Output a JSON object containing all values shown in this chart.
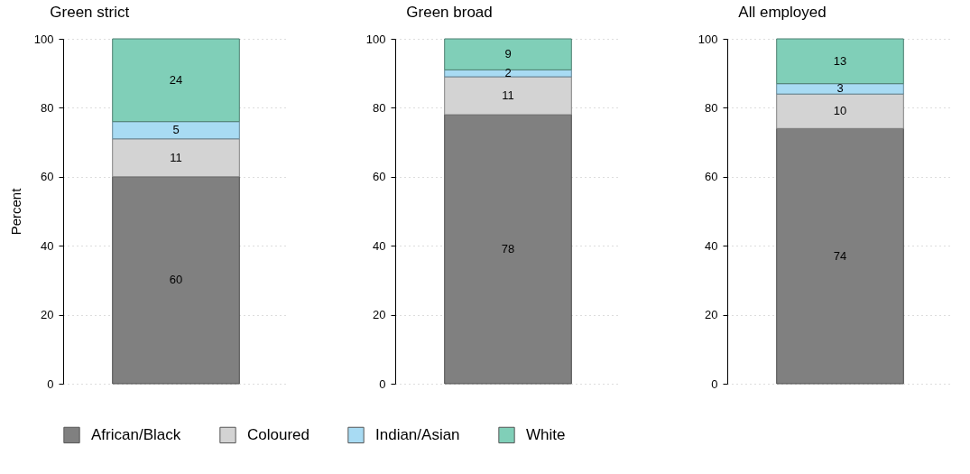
{
  "chart_data": [
    {
      "type": "bar",
      "title": "Green strict",
      "ylabel": "Percent",
      "categories": [
        null
      ],
      "stacked": true,
      "data_labels": true,
      "ylim": [
        0,
        100
      ],
      "yticks": [
        0,
        20,
        40,
        60,
        80,
        100
      ],
      "grid": "y",
      "legend": "bottom",
      "series": [
        {
          "name": "African/Black",
          "color": "#808080",
          "values": [
            60
          ]
        },
        {
          "name": "Coloured",
          "color": "#d3d3d3",
          "values": [
            11
          ]
        },
        {
          "name": "Indian/Asian",
          "color": "#a8dbf3",
          "values": [
            5
          ]
        },
        {
          "name": "White",
          "color": "#80cfb8",
          "values": [
            24
          ]
        }
      ]
    },
    {
      "type": "bar",
      "title": "Green broad",
      "categories": [
        null
      ],
      "stacked": true,
      "data_labels": true,
      "ylim": [
        0,
        100
      ],
      "yticks": [
        0,
        20,
        40,
        60,
        80,
        100
      ],
      "grid": "y",
      "series": [
        {
          "name": "African/Black",
          "color": "#808080",
          "values": [
            78
          ]
        },
        {
          "name": "Coloured",
          "color": "#d3d3d3",
          "values": [
            11
          ]
        },
        {
          "name": "Indian/Asian",
          "color": "#a8dbf3",
          "values": [
            2
          ]
        },
        {
          "name": "White",
          "color": "#80cfb8",
          "values": [
            9
          ]
        }
      ]
    },
    {
      "type": "bar",
      "title": "All employed",
      "categories": [
        null
      ],
      "stacked": true,
      "data_labels": true,
      "ylim": [
        0,
        100
      ],
      "yticks": [
        0,
        20,
        40,
        60,
        80,
        100
      ],
      "grid": "y",
      "series": [
        {
          "name": "African/Black",
          "color": "#808080",
          "values": [
            74
          ]
        },
        {
          "name": "Coloured",
          "color": "#d3d3d3",
          "values": [
            10
          ]
        },
        {
          "name": "Indian/Asian",
          "color": "#a8dbf3",
          "values": [
            3
          ]
        },
        {
          "name": "White",
          "color": "#80cfb8",
          "values": [
            13
          ]
        }
      ]
    }
  ]
}
